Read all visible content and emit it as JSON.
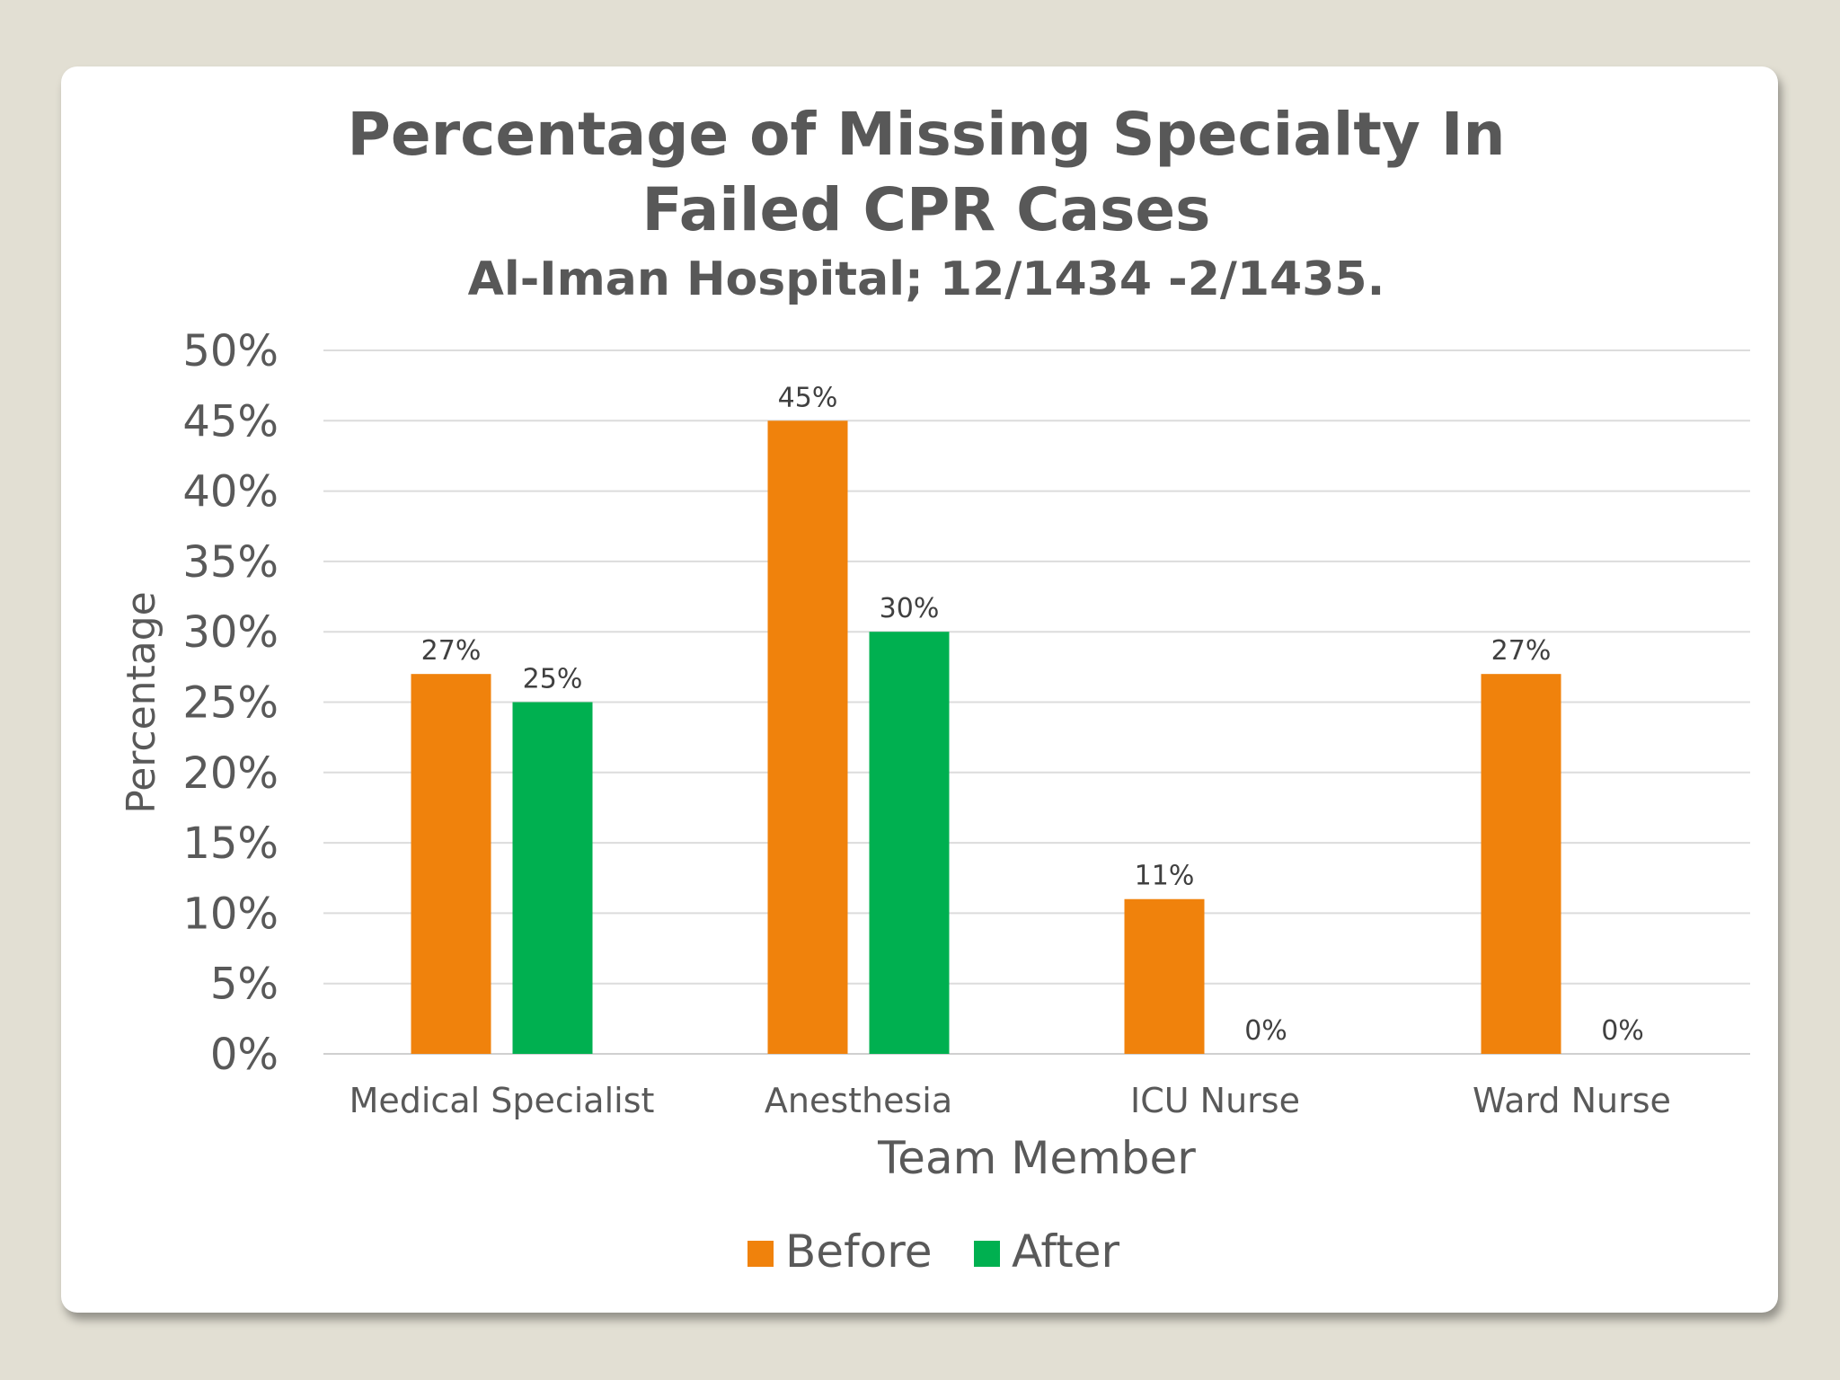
{
  "chart_data": {
    "type": "bar",
    "title": "Percentage of Missing Specialty In Failed CPR Cases",
    "title_lines": [
      "Percentage of Missing Specialty In",
      "Failed CPR Cases"
    ],
    "subtitle": "Al-Iman Hospital; 12/1434 -2/1435.",
    "xlabel": "Team Member",
    "ylabel": "Percentage",
    "categories": [
      "Medical Specialist",
      "Anesthesia",
      "ICU Nurse",
      "Ward Nurse"
    ],
    "series": [
      {
        "name": "Before",
        "color": "#f0820c",
        "values": [
          27,
          45,
          11,
          27
        ],
        "labels": [
          "27%",
          "45%",
          "11%",
          "27%"
        ]
      },
      {
        "name": "After",
        "color": "#00b050",
        "values": [
          25,
          30,
          0,
          0
        ],
        "labels": [
          "25%",
          "30%",
          "0%",
          "0%"
        ]
      }
    ],
    "ylim": [
      0,
      50
    ],
    "yticks": [
      "0%",
      "5%",
      "10%",
      "15%",
      "20%",
      "25%",
      "30%",
      "35%",
      "40%",
      "45%",
      "50%"
    ],
    "ytick_values": [
      0,
      5,
      10,
      15,
      20,
      25,
      30,
      35,
      40,
      45,
      50
    ],
    "grid": true,
    "legend_position": "bottom"
  }
}
